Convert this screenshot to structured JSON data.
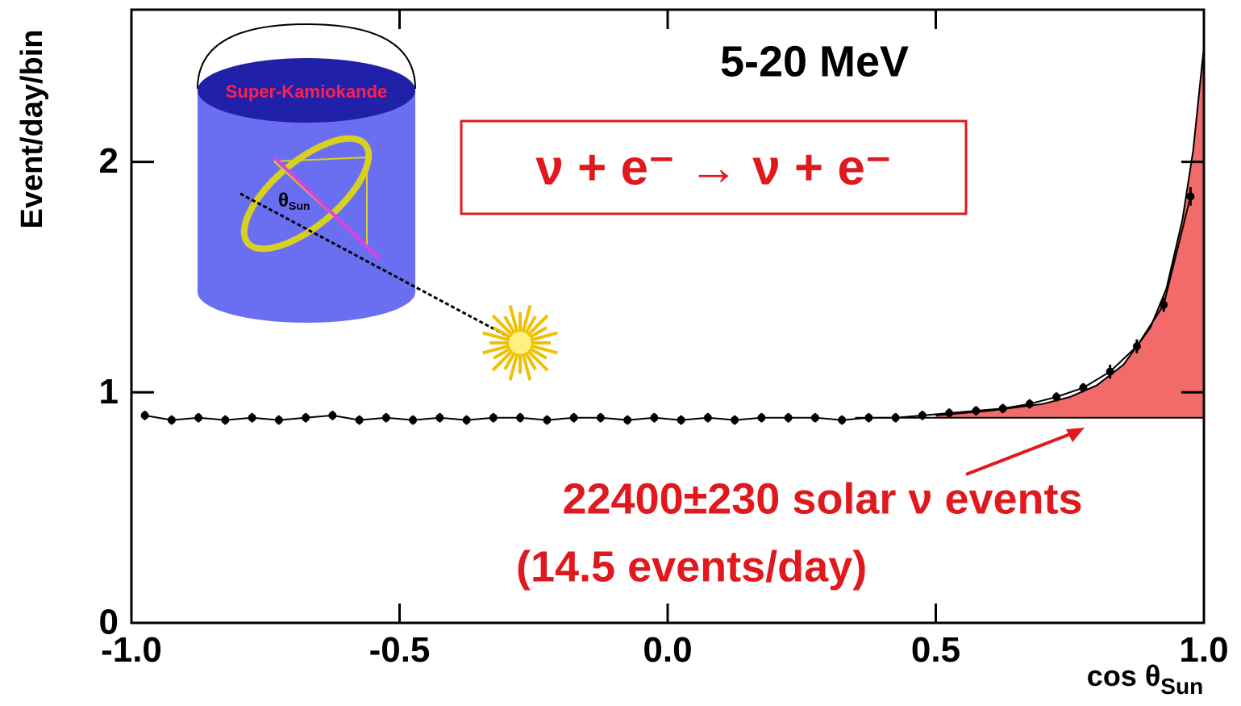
{
  "chart_data": {
    "type": "scatter",
    "title": "5-20 MeV",
    "y_label": "Event/day/bin",
    "x_label": {
      "main": "cos θ",
      "sub": "Sun"
    },
    "reaction": "ν + e⁻ → ν + e⁻",
    "annotations": [
      "22400±230 solar ν events",
      "(14.5 events/day)"
    ],
    "inset": {
      "detector": "Super-Kamiokande",
      "angle": "θ",
      "angle_sub": "Sun"
    },
    "xlim": [
      -1,
      1
    ],
    "ylim": [
      0,
      2.66
    ],
    "xticks": [
      {
        "value": -1,
        "label": "-1.0"
      },
      -0.5,
      {
        "value": 0,
        "label": "0.0"
      },
      0.5,
      {
        "value": 1,
        "label": "1.0"
      }
    ],
    "yticks": [
      0,
      1,
      2
    ],
    "background": 0.89,
    "fill_color": "#f26a6a",
    "series": [
      {
        "color": "#000000",
        "x": [
          -0.975,
          -0.925,
          -0.875,
          -0.825,
          -0.775,
          -0.725,
          -0.675,
          -0.625,
          -0.575,
          -0.525,
          -0.475,
          -0.425,
          -0.375,
          -0.325,
          -0.275,
          -0.225,
          -0.175,
          -0.125,
          -0.075,
          -0.025,
          0.025,
          0.075,
          0.125,
          0.175,
          0.225,
          0.275,
          0.325,
          0.375,
          0.425,
          0.475,
          0.525,
          0.575,
          0.625,
          0.675,
          0.725,
          0.775,
          0.825,
          0.875,
          0.925,
          0.975
        ],
        "values": [
          0.9,
          0.88,
          0.89,
          0.88,
          0.89,
          0.88,
          0.89,
          0.9,
          0.88,
          0.89,
          0.88,
          0.89,
          0.88,
          0.89,
          0.89,
          0.88,
          0.89,
          0.89,
          0.88,
          0.89,
          0.88,
          0.89,
          0.88,
          0.89,
          0.89,
          0.89,
          0.88,
          0.89,
          0.89,
          0.9,
          0.91,
          0.92,
          0.93,
          0.95,
          0.98,
          1.02,
          1.09,
          1.2,
          1.38,
          1.85
        ],
        "errors": [
          0.02,
          0.02,
          0.02,
          0.02,
          0.02,
          0.02,
          0.02,
          0.02,
          0.02,
          0.02,
          0.02,
          0.02,
          0.02,
          0.02,
          0.02,
          0.02,
          0.02,
          0.02,
          0.02,
          0.02,
          0.02,
          0.02,
          0.02,
          0.02,
          0.02,
          0.02,
          0.02,
          0.02,
          0.02,
          0.02,
          0.02,
          0.02,
          0.02,
          0.02,
          0.02,
          0.02,
          0.03,
          0.03,
          0.03,
          0.04
        ]
      },
      {
        "color": "#000000",
        "x": [
          0.5,
          0.6,
          0.7,
          0.75,
          0.8,
          0.85,
          0.9,
          0.93,
          0.96,
          0.98,
          1.0
        ],
        "values": [
          0.9,
          0.92,
          0.95,
          0.98,
          1.03,
          1.12,
          1.28,
          1.45,
          1.75,
          2.05,
          2.5
        ]
      }
    ]
  }
}
